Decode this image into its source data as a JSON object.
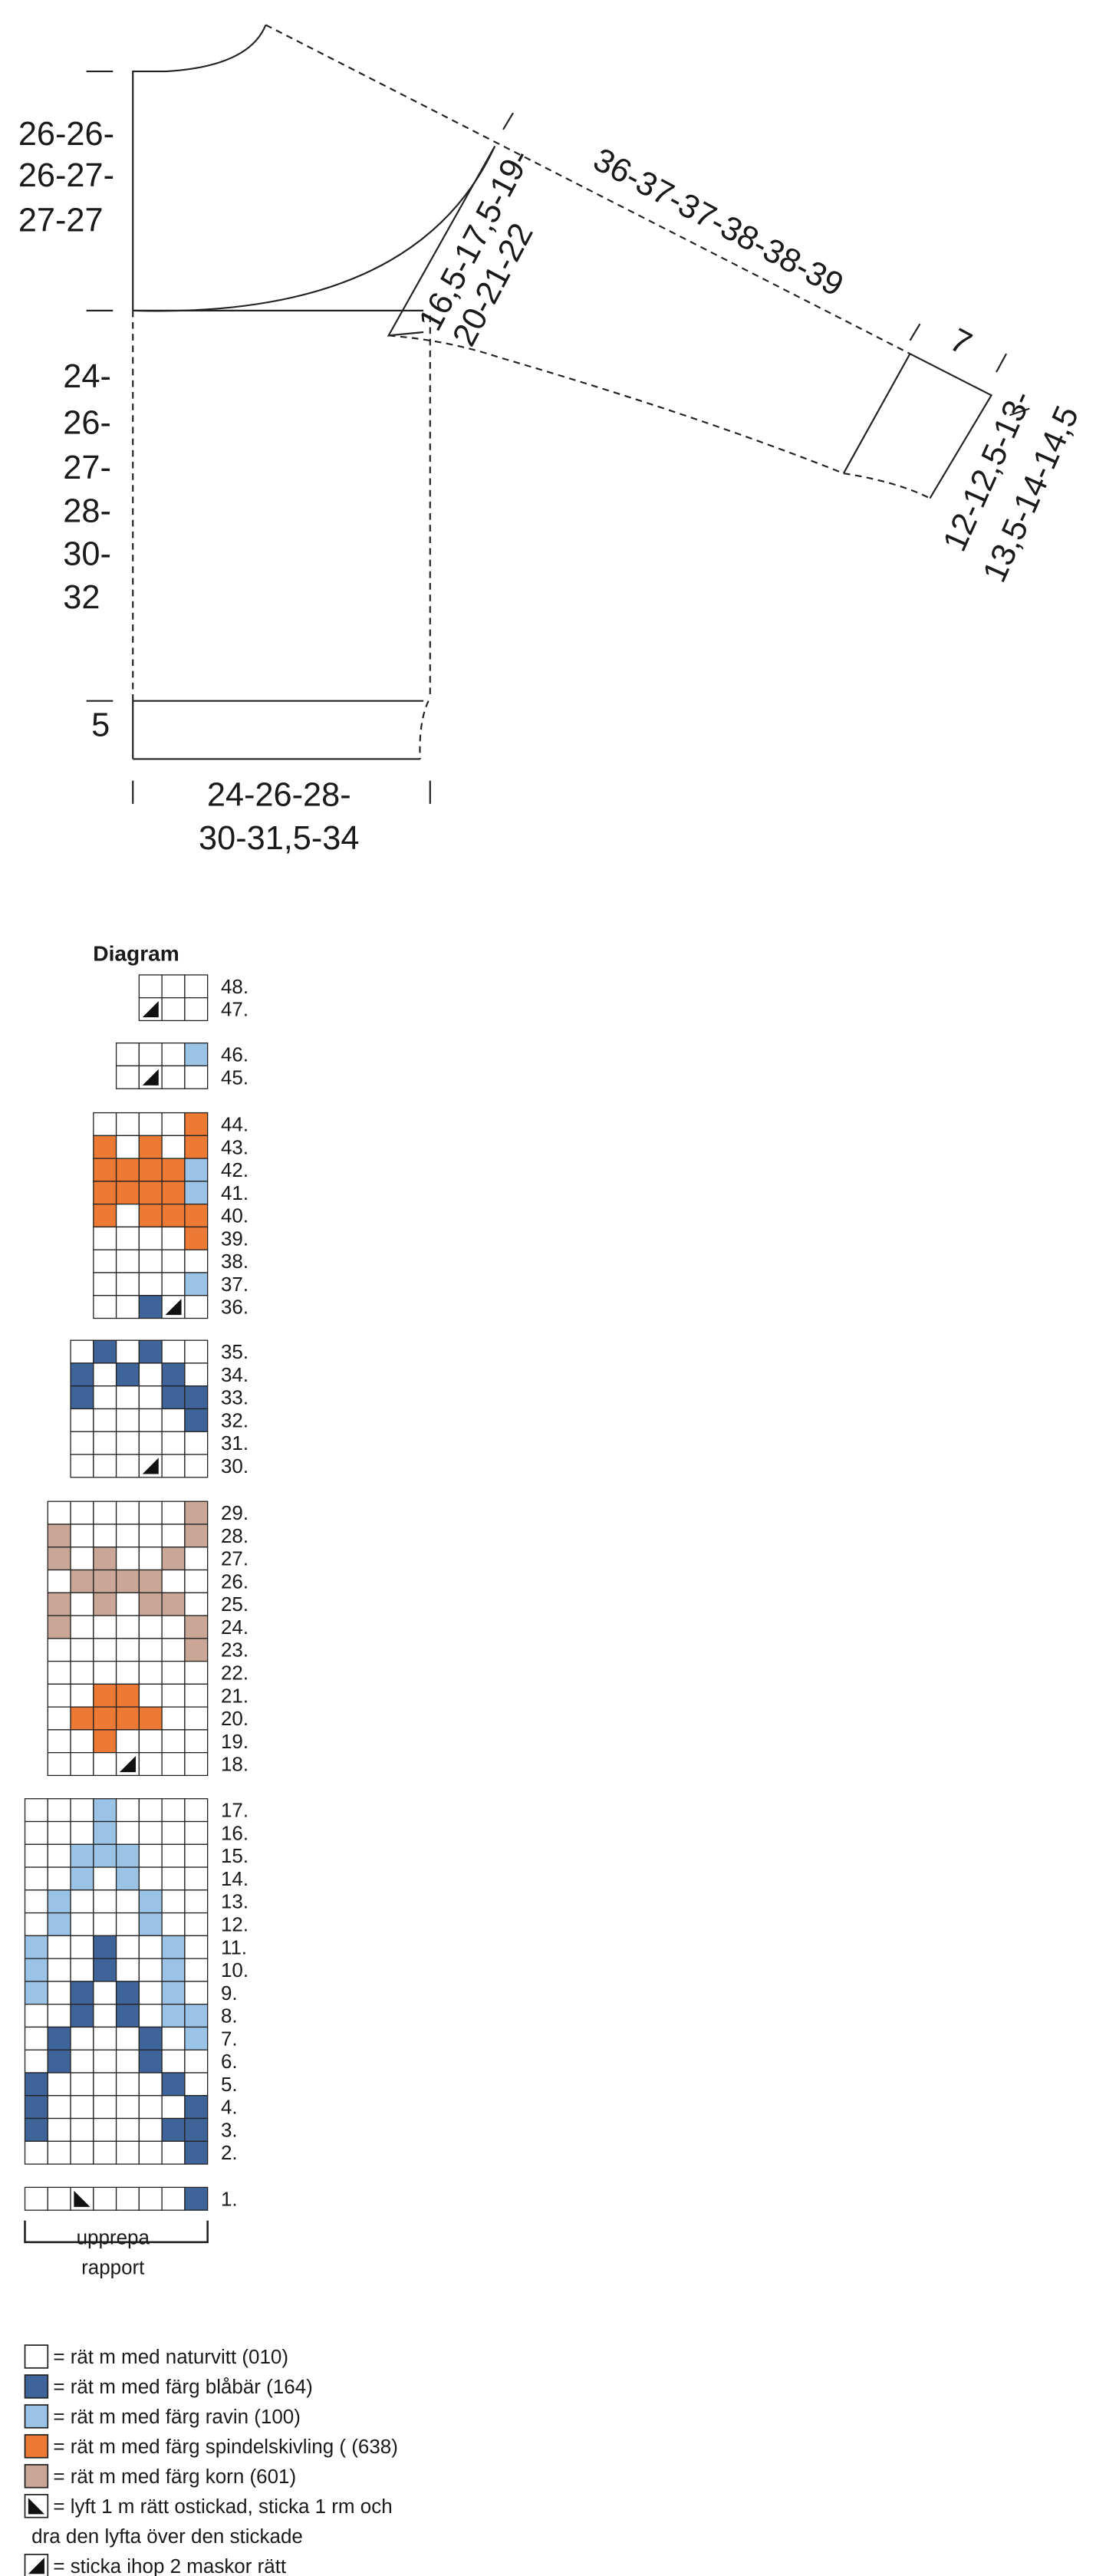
{
  "schematic": {
    "neck_depth": [
      "26-26-",
      "26-27-",
      "27-27"
    ],
    "body_length": [
      "24-",
      "26-",
      "27-",
      "28-",
      "30-",
      "32"
    ],
    "rib": "5",
    "width": [
      "24-26-28-",
      "30-31,5-34"
    ],
    "sleeve_length": "36-37-37-38-38-39",
    "armhole": [
      "16,5-17,5-19-",
      "20-21-22"
    ],
    "cuff_rib": "7",
    "cuff_width": [
      "12-12,5-13-",
      "13,5-14-14,5"
    ]
  },
  "diagram": {
    "title": "Diagram",
    "row_labels": [
      "48.",
      "47.",
      "46.",
      "45.",
      "44.",
      "43.",
      "42.",
      "41.",
      "40.",
      "39.",
      "38.",
      "37.",
      "36.",
      "35.",
      "34.",
      "33.",
      "32.",
      "31.",
      "30.",
      "29.",
      "28.",
      "27.",
      "26.",
      "25.",
      "24.",
      "23.",
      "22.",
      "21.",
      "20.",
      "19.",
      "18.",
      "17.",
      "16.",
      "15.",
      "14.",
      "13.",
      "12.",
      "11.",
      "10.",
      "9.",
      "8.",
      "7.",
      "6.",
      "5.",
      "4.",
      "3.",
      "2.",
      "1."
    ],
    "repeat": [
      "upprepa",
      "rapport"
    ]
  },
  "legend": [
    [
      "= rät m med naturvitt (010)"
    ],
    [
      "= rät m med färg  blåbär (164)"
    ],
    [
      "= rät m med färg ravin (100)"
    ],
    [
      "= rät m med färg spindelskivling ( (638)"
    ],
    [
      "= rät m med färg korn (601)"
    ],
    [
      "= lyft 1 m rätt ostickad, sticka 1 rm och",
      "dra den lyfta över den stickade"
    ],
    [
      "= sticka ihop 2 maskor rätt"
    ]
  ]
}
